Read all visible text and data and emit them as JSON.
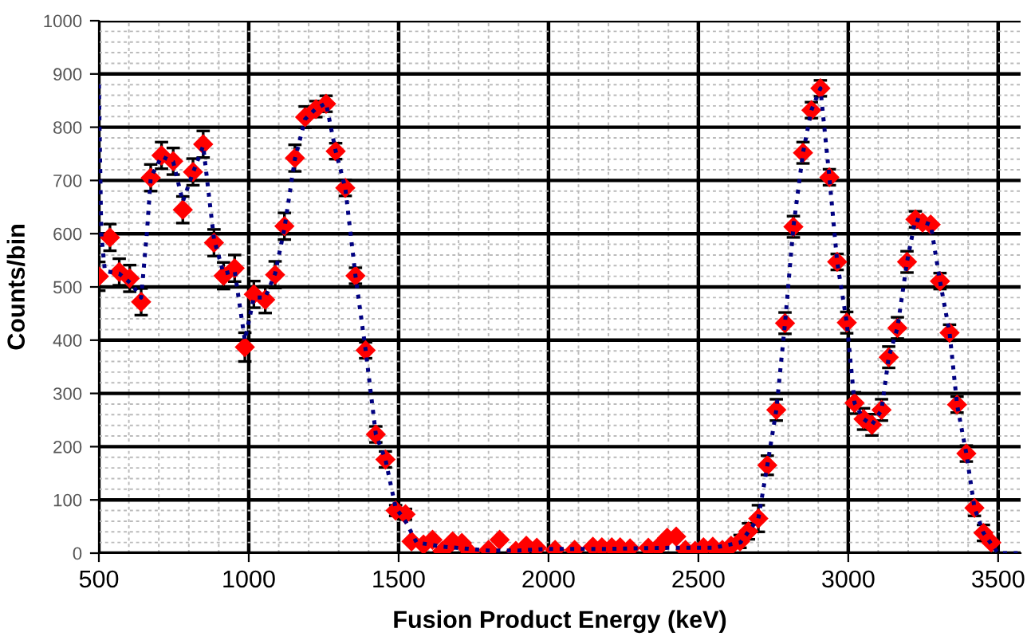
{
  "chart_data": {
    "type": "scatter",
    "xlabel": "Fusion Product Energy (keV)",
    "ylabel": "Counts/bin",
    "xlim": [
      500,
      3575
    ],
    "ylim": [
      0,
      1000
    ],
    "xticks": [
      500,
      1000,
      1500,
      2000,
      2500,
      3000,
      3500
    ],
    "yticks": [
      0,
      100,
      200,
      300,
      400,
      500,
      600,
      700,
      800,
      900,
      1000
    ],
    "grid": true,
    "legend": false,
    "series": [
      {
        "color": "#ff0000",
        "marker": "diamond",
        "x": [
          500,
          537,
          568,
          603,
          641,
          673,
          709,
          748,
          780,
          814,
          848,
          884,
          916,
          953,
          987,
          1017,
          1055,
          1088,
          1119,
          1154,
          1188,
          1224,
          1258,
          1290,
          1322,
          1356,
          1390,
          1424,
          1456,
          1490,
          1523,
          1543,
          1583,
          1613,
          1646,
          1680,
          1711,
          1739,
          1800,
          1837,
          1891,
          1926,
          1961,
          2022,
          2087,
          2148,
          2178,
          2211,
          2239,
          2272,
          2333,
          2365,
          2396,
          2426,
          2457,
          2489,
          2517,
          2548,
          2580,
          2609,
          2639,
          2667,
          2700,
          2730,
          2760,
          2789,
          2817,
          2849,
          2877,
          2907,
          2937,
          2963,
          2995,
          3021,
          3051,
          3079,
          3111,
          3135,
          3164,
          3196,
          3224,
          3248,
          3275,
          3306,
          3338,
          3363,
          3394,
          3421,
          3451,
          3477
        ],
        "values": [
          520,
          593,
          528,
          516,
          472,
          705,
          747,
          736,
          645,
          716,
          768,
          583,
          521,
          535,
          387,
          486,
          476,
          523,
          614,
          742,
          819,
          834,
          844,
          755,
          686,
          521,
          381,
          223,
          176,
          80,
          73,
          22,
          16,
          25,
          4,
          22,
          19,
          0,
          6,
          25,
          4,
          14,
          10,
          6,
          6,
          12,
          11,
          11,
          11,
          9,
          10,
          11,
          29,
          31,
          6,
          4,
          11,
          12,
          6,
          14,
          22,
          41,
          65,
          165,
          269,
          432,
          613,
          752,
          832,
          873,
          706,
          547,
          433,
          282,
          252,
          241,
          269,
          368,
          423,
          547,
          627,
          621,
          617,
          511,
          414,
          279,
          187,
          85,
          38,
          20
        ],
        "errors": [
          27,
          25,
          25,
          25,
          25,
          25,
          25,
          25,
          25,
          25,
          25,
          25,
          25,
          25,
          27,
          25,
          25,
          25,
          25,
          25,
          20,
          15,
          15,
          15,
          15,
          15,
          15,
          15,
          15,
          10,
          10,
          null,
          null,
          null,
          null,
          null,
          null,
          null,
          null,
          null,
          null,
          null,
          null,
          null,
          null,
          null,
          null,
          null,
          null,
          null,
          null,
          null,
          null,
          null,
          null,
          null,
          null,
          null,
          null,
          null,
          12,
          15,
          25,
          18,
          20,
          20,
          20,
          20,
          15,
          15,
          15,
          15,
          20,
          20,
          20,
          20,
          20,
          20,
          20,
          20,
          15,
          null,
          null,
          15,
          15,
          15,
          15,
          15,
          15,
          null
        ]
      },
      {
        "type": "line",
        "color": "#000080",
        "line_style": "dotted",
        "marker": "none",
        "x": [
          500,
          508,
          520,
          568,
          610,
          641,
          660,
          673,
          709,
          748,
          780,
          814,
          848,
          884,
          916,
          953,
          987,
          1017,
          1055,
          1088,
          1119,
          1154,
          1188,
          1224,
          1258,
          1290,
          1322,
          1356,
          1390,
          1424,
          1456,
          1490,
          1523,
          1560,
          1650,
          1800,
          1900,
          2000,
          2200,
          2400,
          2550,
          2640,
          2700,
          2730,
          2760,
          2789,
          2817,
          2849,
          2877,
          2907,
          2937,
          2963,
          2995,
          3021,
          3051,
          3079,
          3111,
          3135,
          3164,
          3196,
          3224,
          3275,
          3306,
          3338,
          3363,
          3394,
          3421,
          3451,
          3480,
          3500,
          3570
        ],
        "values": [
          880,
          600,
          530,
          525,
          505,
          480,
          600,
          705,
          745,
          735,
          660,
          715,
          765,
          590,
          525,
          530,
          400,
          480,
          480,
          525,
          610,
          740,
          815,
          835,
          845,
          755,
          686,
          521,
          381,
          223,
          176,
          85,
          60,
          20,
          12,
          5,
          5,
          8,
          8,
          10,
          10,
          20,
          65,
          165,
          269,
          432,
          613,
          752,
          832,
          873,
          706,
          547,
          433,
          282,
          252,
          241,
          269,
          368,
          423,
          547,
          627,
          617,
          511,
          414,
          279,
          187,
          85,
          38,
          15,
          0,
          0
        ]
      }
    ]
  }
}
